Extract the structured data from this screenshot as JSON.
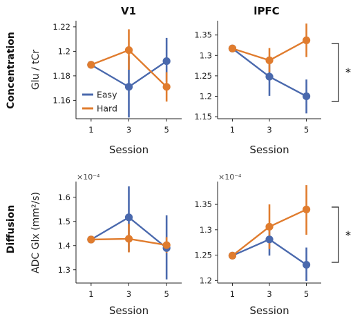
{
  "figure": {
    "column_titles": [
      "V1",
      "lPFC"
    ],
    "row_titles": [
      "Concentration",
      "Diffusion"
    ]
  },
  "colors": {
    "Easy": "#4a69ad",
    "Hard": "#e07c2e"
  },
  "legend": {
    "placement": "lower-left of top-left panel",
    "entries": [
      "Easy",
      "Hard"
    ]
  },
  "chart_data": [
    {
      "id": "concentration-v1",
      "type": "line",
      "title": "V1",
      "ylabel": "Glu / tCr",
      "xlabel": "Session",
      "x": [
        1,
        3,
        5
      ],
      "xticks": [
        "1",
        "3",
        "5"
      ],
      "ylim": [
        1.145,
        1.225
      ],
      "yticks": [
        "1.16",
        "1.18",
        "1.2",
        "1.22"
      ],
      "multiplier": "",
      "significance": "",
      "series": [
        {
          "name": "Easy",
          "values": [
            1.189,
            1.171,
            1.192
          ],
          "err": [
            [
              1.189,
              1.189
            ],
            [
              1.146,
              1.196
            ],
            [
              1.175,
              1.211
            ]
          ]
        },
        {
          "name": "Hard",
          "values": [
            1.189,
            1.201,
            1.171
          ],
          "err": [
            [
              1.189,
              1.189
            ],
            [
              1.185,
              1.218
            ],
            [
              1.159,
              1.183
            ]
          ]
        }
      ]
    },
    {
      "id": "concentration-lpfc",
      "type": "line",
      "title": "lPFC",
      "ylabel": "",
      "xlabel": "Session",
      "x": [
        1,
        3,
        5
      ],
      "xticks": [
        "1",
        "3",
        "5"
      ],
      "ylim": [
        1.145,
        1.385
      ],
      "yticks": [
        "1.15",
        "1.2",
        "1.25",
        "1.3",
        "1.35"
      ],
      "multiplier": "",
      "significance": "*",
      "series": [
        {
          "name": "Easy",
          "values": [
            1.317,
            1.248,
            1.2
          ],
          "err": [
            [
              1.317,
              1.317
            ],
            [
              1.201,
              1.295
            ],
            [
              1.158,
              1.241
            ]
          ]
        },
        {
          "name": "Hard",
          "values": [
            1.317,
            1.288,
            1.337
          ],
          "err": [
            [
              1.317,
              1.317
            ],
            [
              1.259,
              1.318
            ],
            [
              1.296,
              1.378
            ]
          ]
        }
      ]
    },
    {
      "id": "diffusion-v1",
      "type": "line",
      "title": "",
      "ylabel": "ADC Glx (mm²/s)",
      "xlabel": "Session",
      "x": [
        1,
        3,
        5
      ],
      "xticks": [
        "1",
        "3",
        "5"
      ],
      "ylim": [
        1.245,
        1.665
      ],
      "yticks": [
        "1.3",
        "1.4",
        "1.5",
        "1.6"
      ],
      "multiplier": "×10⁻⁴",
      "significance": "",
      "series": [
        {
          "name": "Easy",
          "values": [
            1.425,
            1.517,
            1.39
          ],
          "err": [
            [
              1.425,
              1.425
            ],
            [
              1.375,
              1.645
            ],
            [
              1.26,
              1.525
            ]
          ]
        },
        {
          "name": "Hard",
          "values": [
            1.425,
            1.428,
            1.402
          ],
          "err": [
            [
              1.425,
              1.425
            ],
            [
              1.372,
              1.49
            ],
            [
              1.37,
              1.435
            ]
          ]
        }
      ]
    },
    {
      "id": "diffusion-lpfc",
      "type": "line",
      "title": "",
      "ylabel": "",
      "xlabel": "Session",
      "x": [
        1,
        3,
        5
      ],
      "xticks": [
        "1",
        "3",
        "5"
      ],
      "ylim": [
        1.195,
        1.395
      ],
      "yticks": [
        "1.2",
        "1.25",
        "1.3",
        "1.35"
      ],
      "multiplier": "×10⁻⁴",
      "significance": "*",
      "series": [
        {
          "name": "Easy",
          "values": [
            1.249,
            1.281,
            1.231
          ],
          "err": [
            [
              1.249,
              1.249
            ],
            [
              1.249,
              1.312
            ],
            [
              1.199,
              1.265
            ]
          ]
        },
        {
          "name": "Hard",
          "values": [
            1.249,
            1.306,
            1.34
          ],
          "err": [
            [
              1.249,
              1.249
            ],
            [
              1.262,
              1.35
            ],
            [
              1.29,
              1.388
            ]
          ]
        }
      ]
    }
  ]
}
